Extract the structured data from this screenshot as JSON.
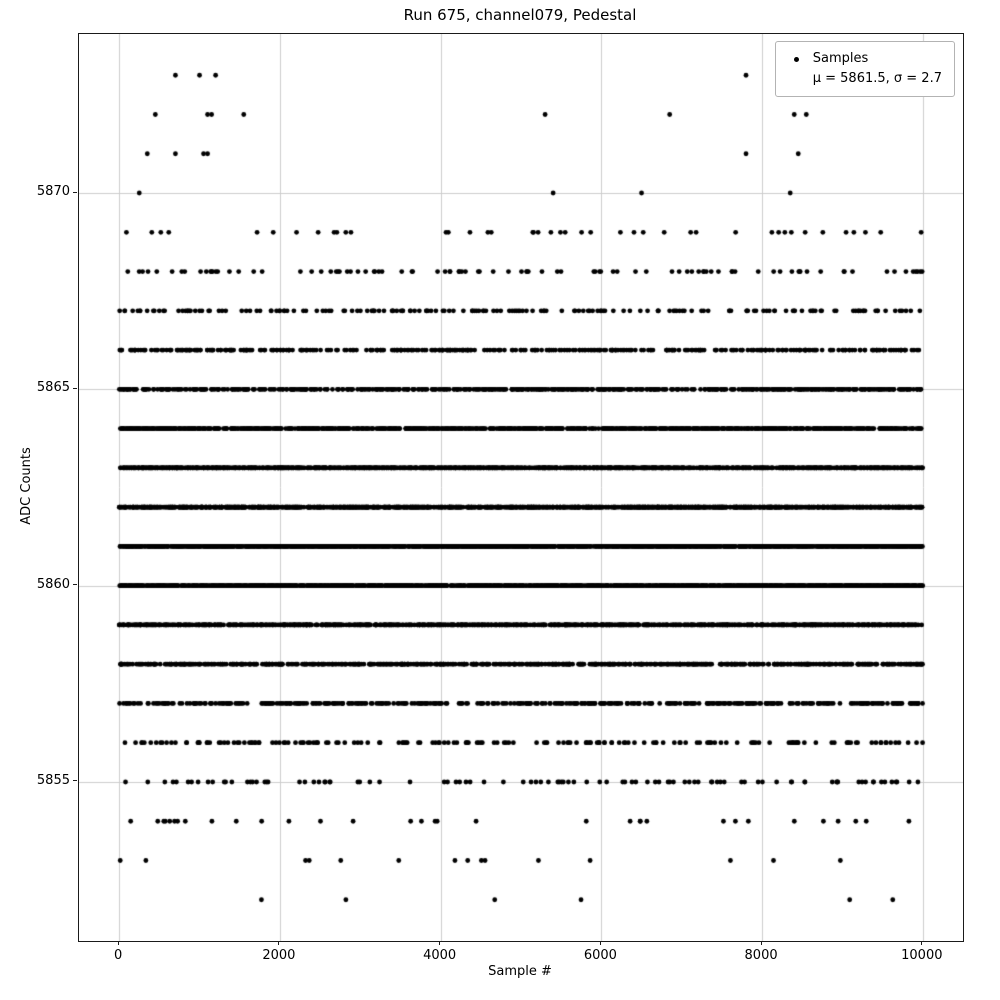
{
  "chart_data": {
    "type": "scatter",
    "title": "Run 675, channel079, Pedestal",
    "xlabel": "Sample #",
    "ylabel": "ADC Counts",
    "xlim": [
      -500,
      10500
    ],
    "ylim": [
      5850.95,
      5874.05
    ],
    "xticks": [
      0,
      2000,
      4000,
      6000,
      8000,
      10000
    ],
    "yticks": [
      5855,
      5860,
      5865,
      5870
    ],
    "grid": true,
    "grid_color": "#cccccc",
    "marker_color": "#000000",
    "legend": {
      "label": "Samples",
      "stats": "μ = 5861.5, σ = 2.7",
      "position": "upper right"
    },
    "n_samples": 10000,
    "x_range": [
      0,
      9999
    ],
    "mu": 5861.5,
    "sigma": 2.7,
    "adc_min": 5852,
    "adc_max": 5873,
    "generated_clip_max": 5869,
    "seed": 675079,
    "outliers": [
      {
        "y": 5873,
        "x": [
          700,
          1000,
          1200,
          7800
        ]
      },
      {
        "y": 5872,
        "x": [
          450,
          1100,
          1150,
          1550,
          5300,
          6850,
          8400,
          8550
        ]
      },
      {
        "y": 5871,
        "x": [
          350,
          700,
          1050,
          1100,
          7800,
          8450
        ]
      },
      {
        "y": 5870,
        "x": [
          250,
          5400,
          6500,
          8350
        ]
      }
    ]
  }
}
